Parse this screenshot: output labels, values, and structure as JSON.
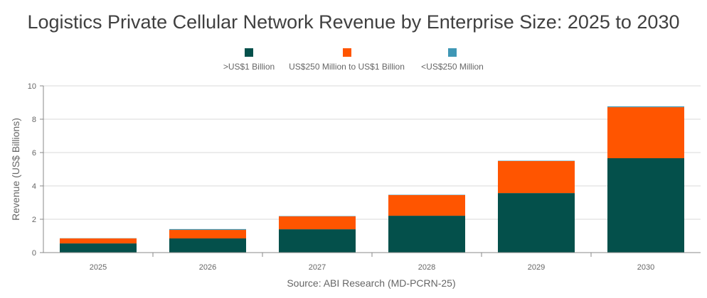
{
  "chart_data": {
    "type": "bar",
    "stacked": true,
    "title": "Logistics Private Cellular Network Revenue by Enterprise Size: 2025 to 2030",
    "ylabel": "Revenue (US$ Billions)",
    "xlabel": "",
    "source": "Source: ABI Research (MD-PCRN-25)",
    "ylim": [
      0,
      10
    ],
    "yticks": [
      0,
      2,
      4,
      6,
      8,
      10
    ],
    "grid": true,
    "legend_position": "top",
    "categories": [
      "2025",
      "2026",
      "2027",
      "2028",
      "2029",
      "2030"
    ],
    "series": [
      {
        "name": ">US$1 Billion",
        "color": "#04504b",
        "values": [
          0.55,
          0.85,
          1.4,
          2.21,
          3.57,
          5.66
        ]
      },
      {
        "name": "US$250 Million to US$1 Billion",
        "color": "#ff5500",
        "values": [
          0.3,
          0.51,
          0.77,
          1.24,
          1.92,
          3.06
        ]
      },
      {
        "name": "<US$250 Million",
        "color": "#3f97b5",
        "values": [
          0.01,
          0.05,
          0.02,
          0.02,
          0.02,
          0.05
        ]
      }
    ]
  }
}
